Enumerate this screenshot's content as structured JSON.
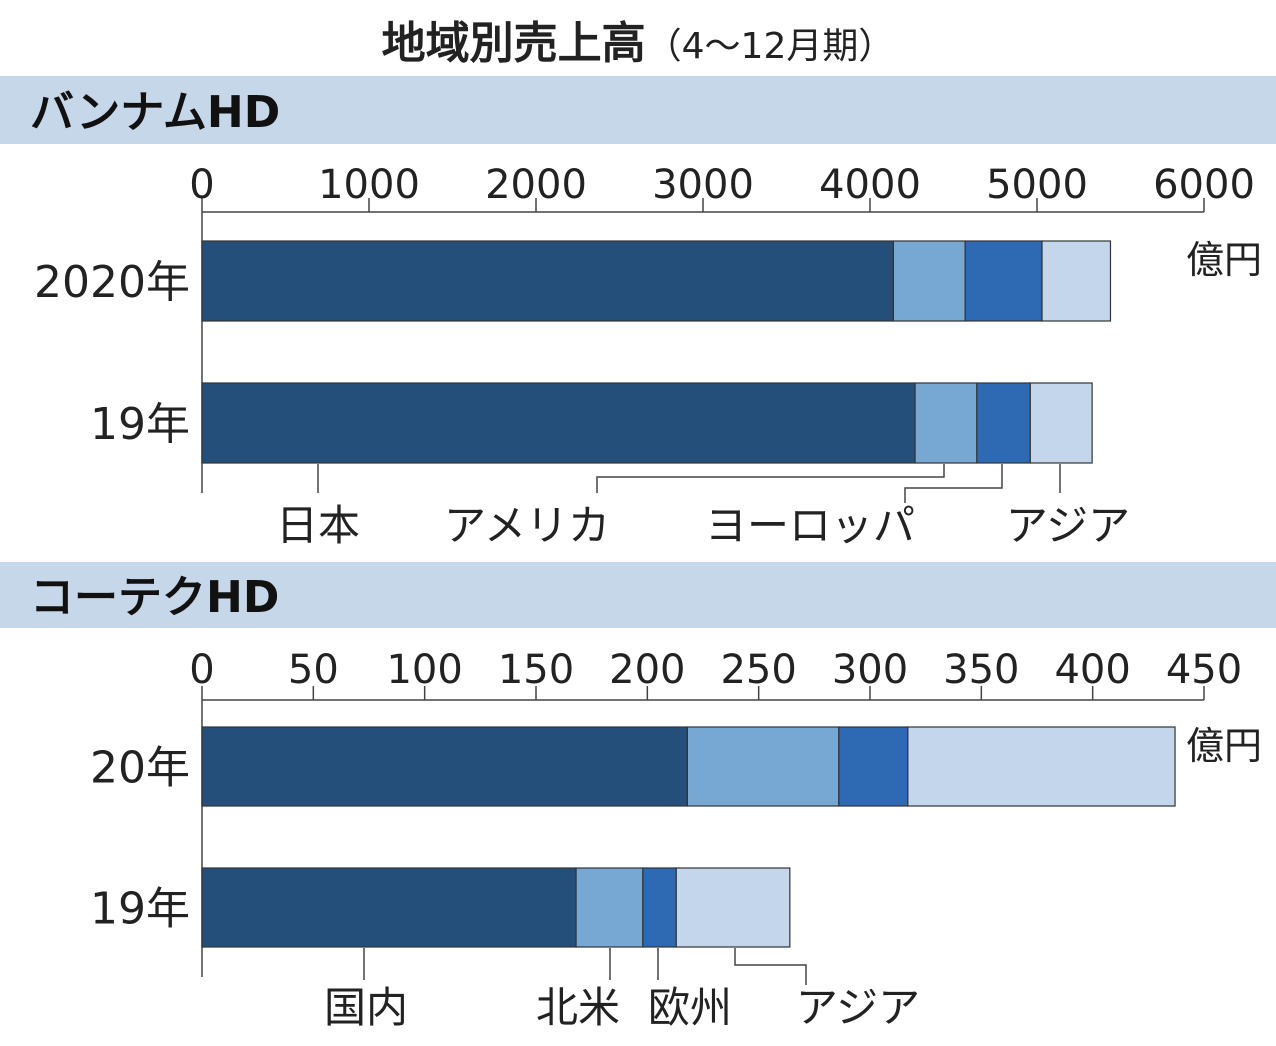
{
  "title": {
    "main": "地域別売上高",
    "sub": "（4～12月期）"
  },
  "colors": {
    "band": "#c6d7ea",
    "segments": [
      "#244f7a",
      "#77a7d3",
      "#2e6ab4",
      "#c4d6ec"
    ],
    "axis": "#444444",
    "bar_outline": "#333333"
  },
  "chart_data": [
    {
      "type": "bar",
      "orientation": "horizontal",
      "stacked": true,
      "title": "バンナムHD",
      "unit": "億円",
      "xlim": [
        0,
        6000
      ],
      "ticks": [
        0,
        1000,
        2000,
        3000,
        4000,
        5000,
        6000
      ],
      "tick_labels": [
        "0",
        "1000",
        "2000",
        "3000",
        "4000",
        "5000",
        "6000"
      ],
      "categories": [
        "2020年",
        "19年"
      ],
      "series": [
        {
          "name": "日本",
          "values": [
            4140,
            4270
          ]
        },
        {
          "name": "アメリカ",
          "values": [
            430,
            370
          ]
        },
        {
          "name": "ヨーロッパ",
          "values": [
            460,
            320
          ]
        },
        {
          "name": "アジア",
          "values": [
            410,
            370
          ]
        }
      ]
    },
    {
      "type": "bar",
      "orientation": "horizontal",
      "stacked": true,
      "title": "コーテクHD",
      "unit": "億円",
      "xlim": [
        0,
        450
      ],
      "ticks": [
        0,
        50,
        100,
        150,
        200,
        250,
        300,
        350,
        400,
        450
      ],
      "tick_labels": [
        "0",
        "50",
        "100",
        "150",
        "200",
        "250",
        "300",
        "350",
        "400",
        "450"
      ],
      "categories": [
        "20年",
        "19年"
      ],
      "series": [
        {
          "name": "国内",
          "values": [
            218,
            168
          ]
        },
        {
          "name": "北米",
          "values": [
            68,
            30
          ]
        },
        {
          "name": "欧州",
          "values": [
            31,
            15
          ]
        },
        {
          "name": "アジア",
          "values": [
            120,
            51
          ]
        }
      ]
    }
  ]
}
